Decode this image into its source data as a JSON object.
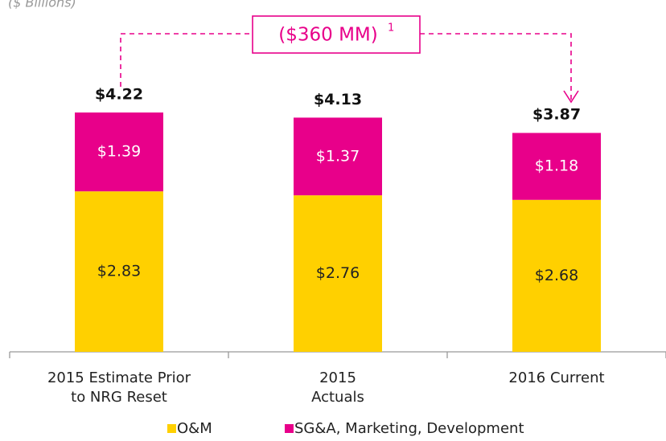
{
  "chart_data": {
    "type": "stacked_bar",
    "subtitle": "($ Billions)",
    "annotation": {
      "text": "($360 MM)",
      "superscript": "1"
    },
    "categories": [
      [
        "2015 Estimate Prior",
        "to NRG Reset"
      ],
      [
        "2015",
        "Actuals"
      ],
      [
        "2016 Current"
      ]
    ],
    "series": [
      {
        "name": "O&M",
        "color": "#FFD000",
        "values": [
          2.83,
          2.76,
          2.68
        ],
        "value_labels": [
          "$2.83",
          "$2.76",
          "$2.68"
        ]
      },
      {
        "name": "SG&A, Marketing, Development",
        "color": "#E8008A",
        "values": [
          1.39,
          1.37,
          1.18
        ],
        "value_labels": [
          "$1.39",
          "$1.37",
          "$1.18"
        ]
      }
    ],
    "totals": [
      4.22,
      4.13,
      3.87
    ],
    "total_labels": [
      "$4.22",
      "$4.13",
      "$3.87"
    ],
    "ylim": [
      0,
      5
    ]
  }
}
